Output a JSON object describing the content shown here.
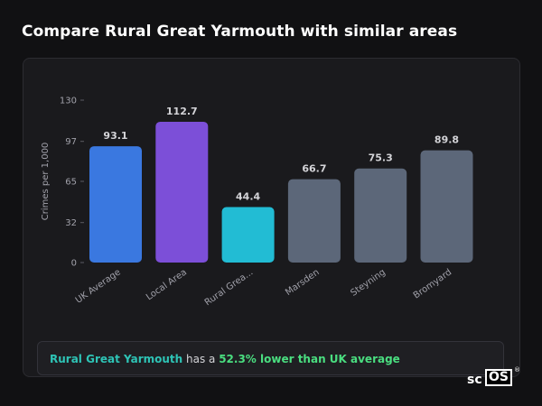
{
  "page": {
    "title": "Compare Rural Great Yarmouth with similar areas"
  },
  "chart_data": {
    "type": "bar",
    "ylabel": "Crimes per 1,000",
    "xlabel": "",
    "ylim": [
      0,
      130
    ],
    "yticks": [
      0,
      32,
      65,
      97,
      130
    ],
    "grid": false,
    "categories": [
      "UK Average",
      "Local Area",
      "Rural Grea...",
      "Marsden",
      "Steyning",
      "Bromyard"
    ],
    "values": [
      93.1,
      112.7,
      44.4,
      66.7,
      75.3,
      89.8
    ],
    "value_labels": [
      "93.1",
      "112.7",
      "44.4",
      "66.7",
      "75.3",
      "89.8"
    ],
    "colors": [
      "#3a78e0",
      "#7c4fd8",
      "#22bcd4",
      "#5c6779",
      "#5c6779",
      "#5c6779"
    ]
  },
  "summary": {
    "area": "Rural Great Yarmouth",
    "middle": " has a ",
    "comparison": "52.3% lower than UK average"
  },
  "logo": {
    "sc": "sc",
    "os": "OS",
    "reg": "®"
  }
}
